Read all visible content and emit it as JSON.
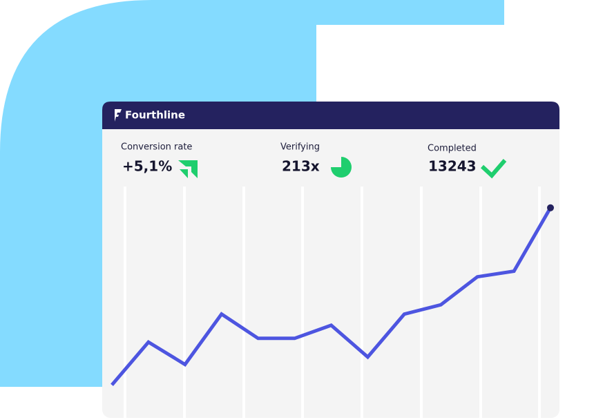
{
  "header": {
    "brand": "Fourthline"
  },
  "stats": [
    {
      "label": "Conversion rate",
      "value": "+5,1%"
    },
    {
      "label": "Verifying",
      "value": "213x"
    },
    {
      "label": "Completed",
      "value": "13243"
    }
  ],
  "chart_data": {
    "type": "line",
    "color": "#4d55e0",
    "ylim": [
      0,
      100
    ],
    "values": [
      1,
      24,
      12,
      39,
      26,
      26,
      33,
      16,
      39,
      44,
      59,
      62,
      96
    ]
  }
}
